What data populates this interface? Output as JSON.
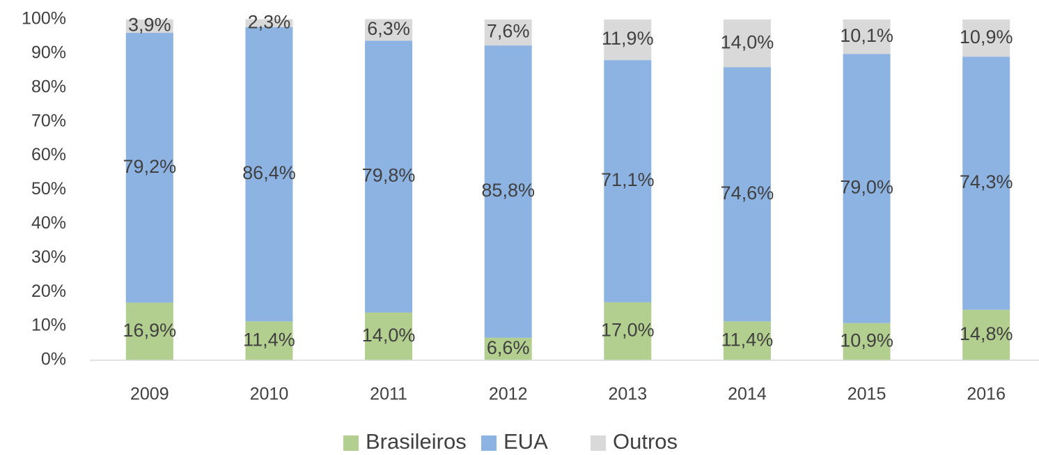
{
  "chart_data": {
    "type": "stacked_bar",
    "categories": [
      "2009",
      "2010",
      "2011",
      "2012",
      "2013",
      "2014",
      "2015",
      "2016"
    ],
    "series": [
      {
        "name": "Brasileiros",
        "color": "#b3cf8f",
        "values": [
          16.9,
          11.4,
          14.0,
          6.6,
          17.0,
          11.4,
          10.9,
          14.8
        ],
        "value_labels": [
          "16,9%",
          "11,4%",
          "14,0%",
          "6,6%",
          "17,0%",
          "11,4%",
          "10,9%",
          "14,8%"
        ]
      },
      {
        "name": "EUA",
        "color": "#8db3e2",
        "values": [
          79.2,
          86.4,
          79.8,
          85.8,
          71.1,
          74.6,
          79.0,
          74.3
        ],
        "value_labels": [
          "79,2%",
          "86,4%",
          "79,8%",
          "85,8%",
          "71,1%",
          "74,6%",
          "79,0%",
          "74,3%"
        ]
      },
      {
        "name": "Outros",
        "color": "#d9d9d9",
        "values": [
          3.9,
          2.3,
          6.3,
          7.6,
          11.9,
          14.0,
          10.1,
          10.9
        ],
        "value_labels": [
          "3,9%",
          "2,3%",
          "6,3%",
          "7,6%",
          "11,9%",
          "14,0%",
          "10,1%",
          "10,9%"
        ]
      }
    ],
    "ylim": [
      0,
      100
    ],
    "yticks": [
      {
        "value": 0,
        "label": "0%"
      },
      {
        "value": 10,
        "label": "10%"
      },
      {
        "value": 20,
        "label": "20%"
      },
      {
        "value": 30,
        "label": "30%"
      },
      {
        "value": 40,
        "label": "40%"
      },
      {
        "value": 50,
        "label": "50%"
      },
      {
        "value": 60,
        "label": "60%"
      },
      {
        "value": 70,
        "label": "70%"
      },
      {
        "value": 80,
        "label": "80%"
      },
      {
        "value": 90,
        "label": "90%"
      },
      {
        "value": 100,
        "label": "100%"
      }
    ],
    "grid": false,
    "legend": "bottom"
  }
}
